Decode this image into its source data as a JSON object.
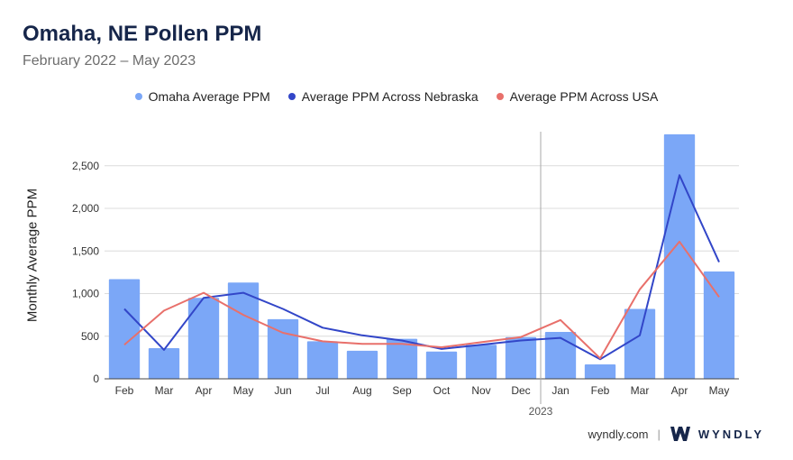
{
  "header": {
    "title": "Omaha, NE Pollen PPM",
    "subtitle": "February 2022 – May 2023"
  },
  "legend": {
    "omaha": "Omaha Average PPM",
    "nebraska": "Average PPM Across Nebraska",
    "usa": "Average PPM Across USA"
  },
  "colors": {
    "omaha": "#7ba7f7",
    "nebraska": "#3246c8",
    "usa": "#e8706b"
  },
  "footer": {
    "site": "wyndly.com",
    "separator": "|",
    "brand": "WYNDLY"
  },
  "chart_data": {
    "type": "bar",
    "title": "Omaha, NE Pollen PPM",
    "xlabel": "",
    "ylabel": "Monthly Average PPM",
    "ylim": [
      0,
      2900
    ],
    "yticks": [
      0,
      500,
      1000,
      1500,
      2000,
      2500
    ],
    "ytick_labels": [
      "0",
      "500",
      "1,000",
      "1,500",
      "2,000",
      "2,500"
    ],
    "grid": true,
    "legend_position": "top-center",
    "categories": [
      "Feb",
      "Mar",
      "Apr",
      "May",
      "Jun",
      "Jul",
      "Aug",
      "Sep",
      "Oct",
      "Nov",
      "Dec",
      "Jan",
      "Feb",
      "Mar",
      "Apr",
      "May"
    ],
    "year_divider_after": 11,
    "year_label": "2023",
    "series": [
      {
        "name": "Omaha Average PPM",
        "kind": "bar",
        "values": [
          1170,
          360,
          950,
          1130,
          700,
          440,
          330,
          470,
          320,
          400,
          490,
          550,
          170,
          820,
          2870,
          1260
        ]
      },
      {
        "name": "Average PPM Across Nebraska",
        "kind": "line",
        "values": [
          820,
          340,
          950,
          1010,
          820,
          600,
          510,
          450,
          350,
          400,
          450,
          480,
          230,
          510,
          2390,
          1370
        ]
      },
      {
        "name": "Average PPM Across USA",
        "kind": "line",
        "values": [
          400,
          800,
          1010,
          750,
          540,
          440,
          410,
          410,
          370,
          430,
          490,
          690,
          240,
          1050,
          1610,
          960
        ]
      }
    ]
  }
}
